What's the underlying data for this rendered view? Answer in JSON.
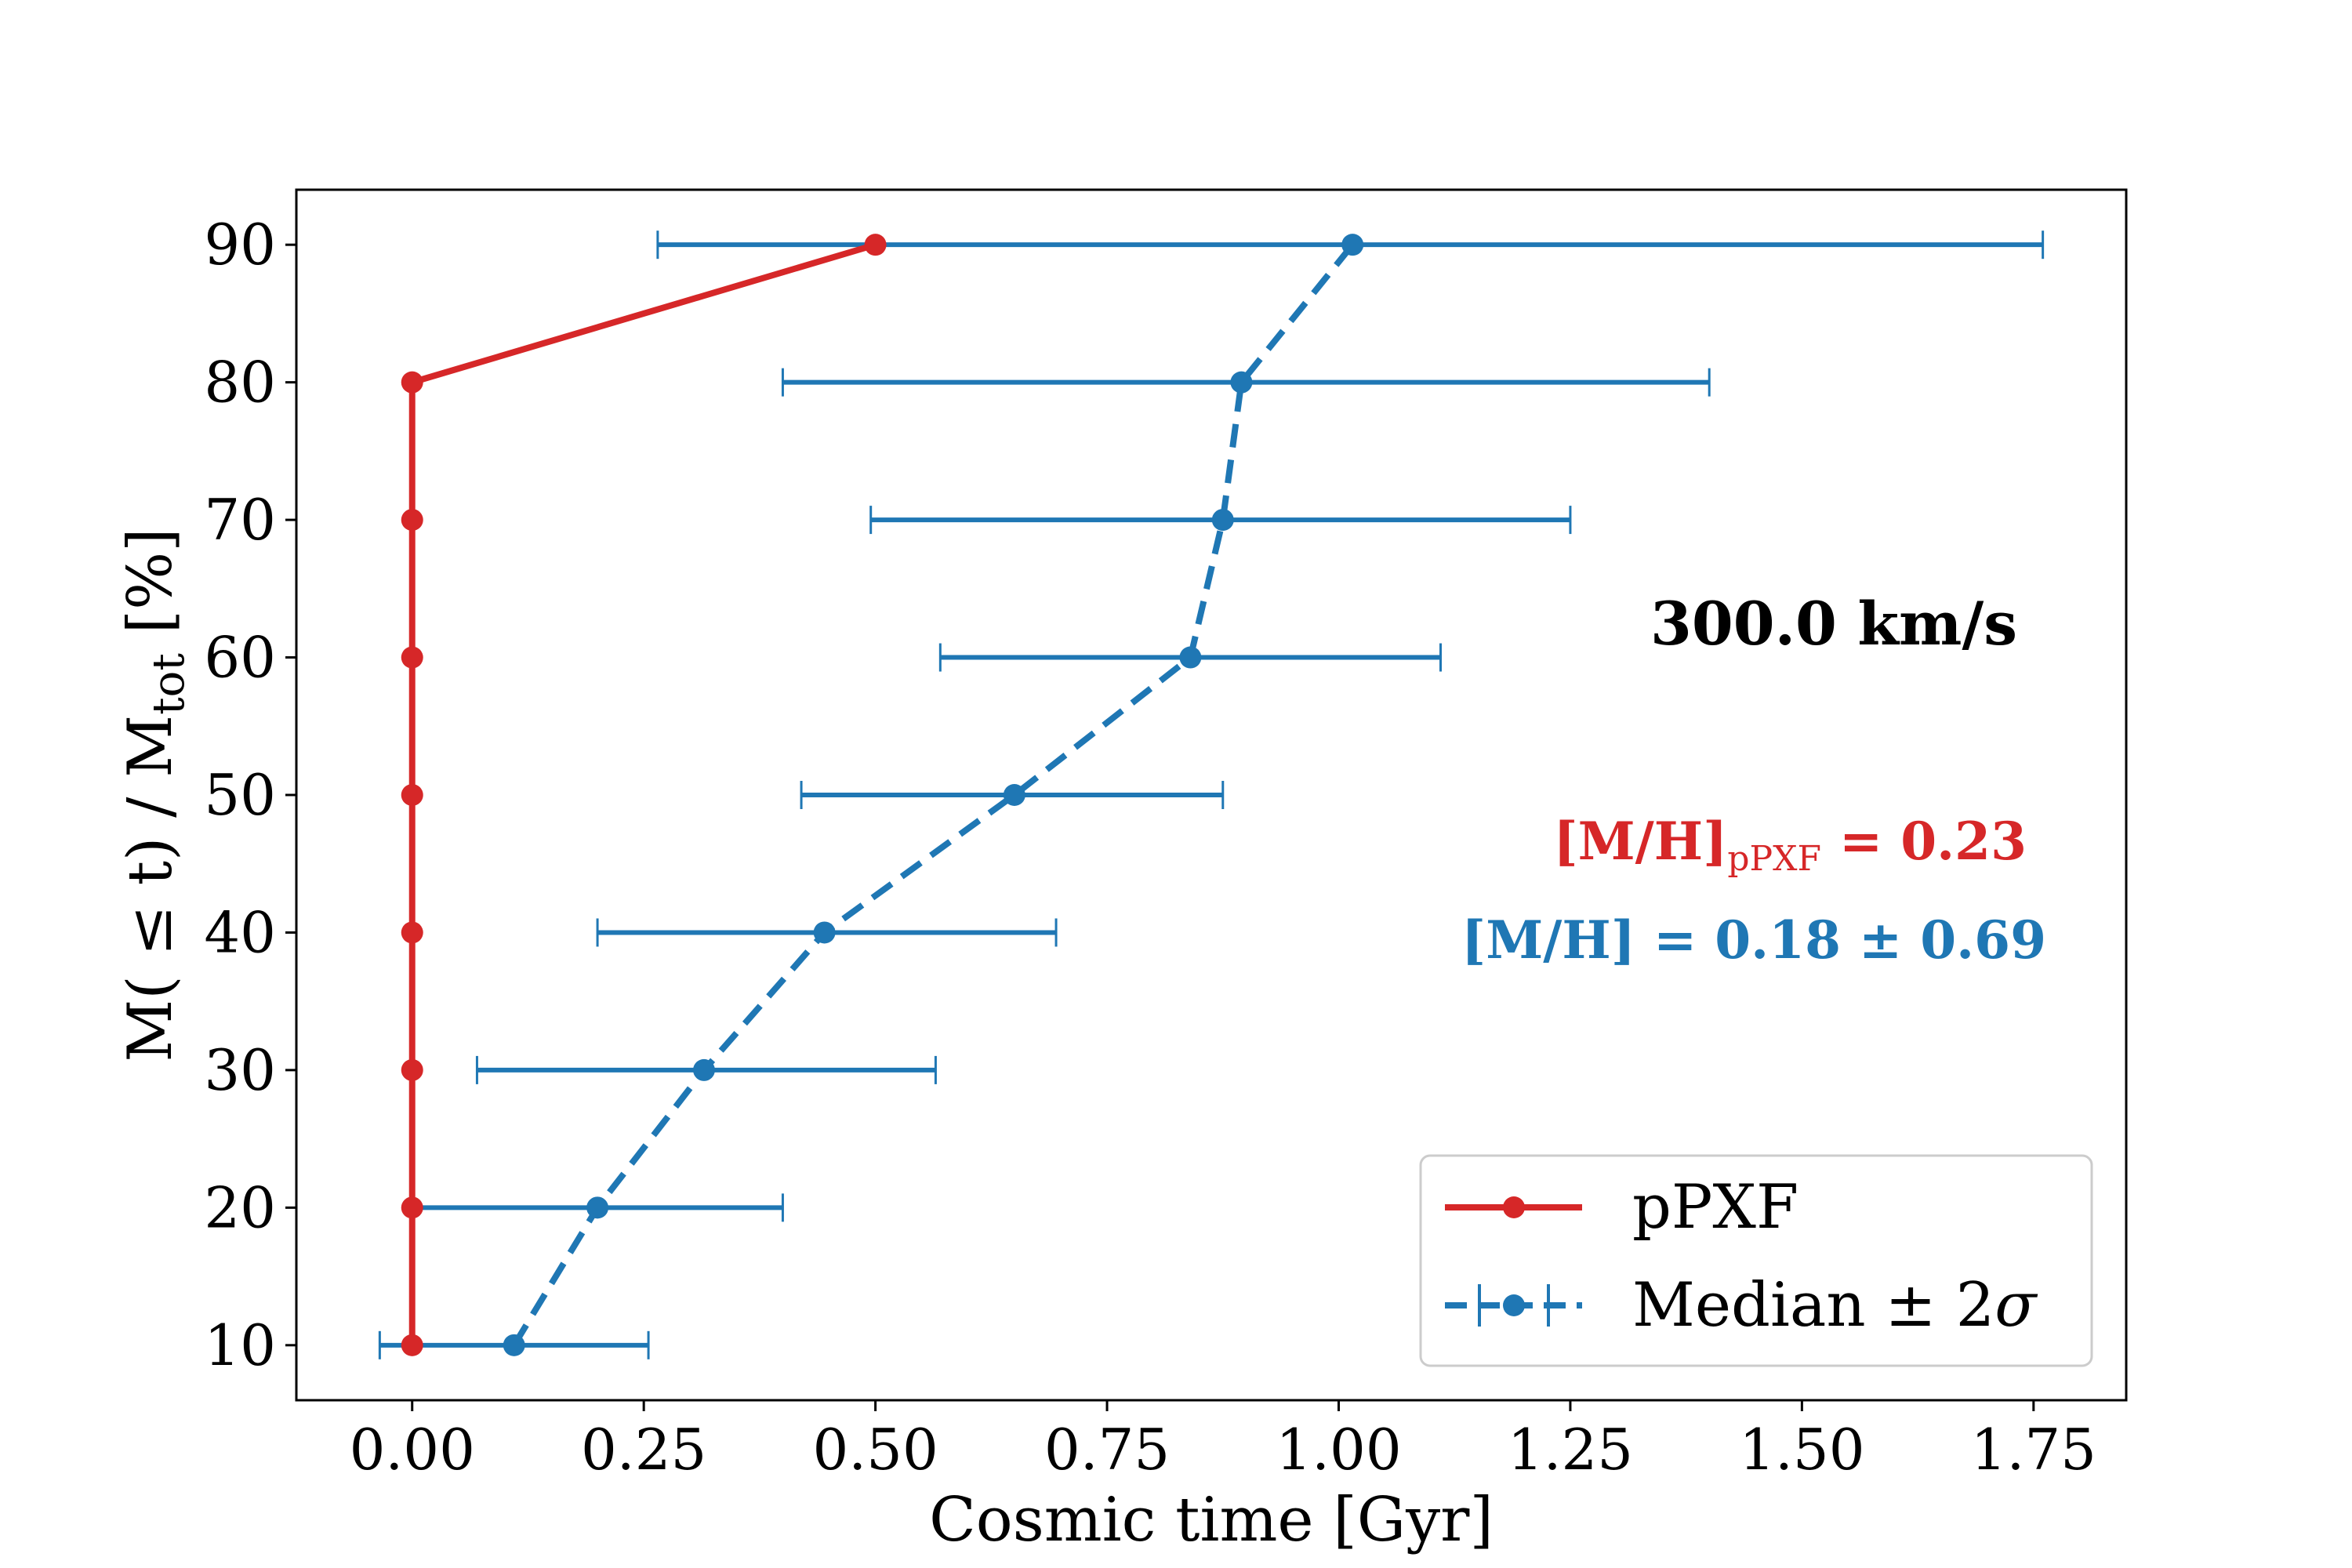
{
  "chart_data": {
    "type": "line",
    "xlabel": "Cosmic time [Gyr]",
    "ylabel": {
      "main": "M( ≤ t) / M",
      "subscript": "tot",
      "suffix": " [%]"
    },
    "xlim": [
      -0.125,
      1.85
    ],
    "ylim": [
      6,
      94
    ],
    "xticks": [
      0.0,
      0.25,
      0.5,
      0.75,
      1.0,
      1.25,
      1.5,
      1.75
    ],
    "xtick_labels": [
      "0.00",
      "0.25",
      "0.50",
      "0.75",
      "1.00",
      "1.25",
      "1.50",
      "1.75"
    ],
    "yticks": [
      10,
      20,
      30,
      40,
      50,
      60,
      70,
      80,
      90
    ],
    "ytick_labels": [
      "10",
      "20",
      "30",
      "40",
      "50",
      "60",
      "70",
      "80",
      "90"
    ],
    "grid": false,
    "legend_position": "lower-right",
    "series": [
      {
        "name": "pPXF",
        "color": "#d62728",
        "style": "solid",
        "marker": "circle",
        "x": [
          0.0,
          0.0,
          0.0,
          0.0,
          0.0,
          0.0,
          0.0,
          0.0,
          0.5
        ],
        "y": [
          10,
          20,
          30,
          40,
          50,
          60,
          70,
          80,
          90
        ]
      },
      {
        "name": "Median ± 2σ",
        "name_plain": "Median ± 2",
        "name_symbol": "σ",
        "color": "#1f77b4",
        "style": "dashed",
        "marker": "circle",
        "x": [
          0.11,
          0.2,
          0.315,
          0.445,
          0.65,
          0.84,
          0.875,
          0.895,
          1.015
        ],
        "y": [
          10,
          20,
          30,
          40,
          50,
          60,
          70,
          80,
          90
        ],
        "xerr_low": [
          -0.035,
          0.0,
          0.07,
          0.2,
          0.42,
          0.57,
          0.495,
          0.4,
          0.265
        ],
        "xerr_high": [
          0.255,
          0.4,
          0.565,
          0.695,
          0.875,
          1.11,
          1.25,
          1.4,
          1.76
        ]
      }
    ],
    "annotations": {
      "velocity": "300.0 km/s",
      "mh_ppxf": {
        "prefix": "[M/H]",
        "subscript": "pPXF",
        "suffix": " = 0.23",
        "color": "#d62728"
      },
      "mh_median": {
        "text": "[M/H] = 0.18 ± 0.69",
        "color": "#1f77b4"
      }
    }
  }
}
